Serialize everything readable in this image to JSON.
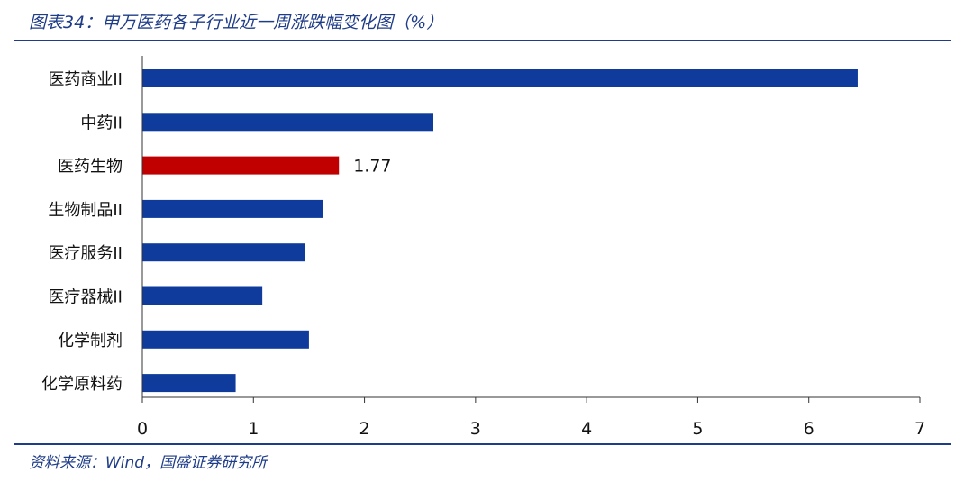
{
  "figure": {
    "title": "图表34：申万医药各子行业近一周涨跌幅变化图（%）",
    "source": "资料来源：Wind，国盛证券研究所"
  },
  "colors": {
    "bar": "#0f3c9c",
    "highlight": "#c00000",
    "text": "#111111",
    "axis": "#333333",
    "frame": "#1f3c88"
  },
  "chart_data": {
    "type": "bar",
    "orientation": "horizontal",
    "categories": [
      "医药商业II",
      "中药II",
      "医药生物",
      "生物制品II",
      "医疗服务II",
      "医疗器械II",
      "化学制剂",
      "化学原料药"
    ],
    "values": [
      6.44,
      2.62,
      1.77,
      1.63,
      1.46,
      1.08,
      1.5,
      0.84
    ],
    "highlight_category": "医药生物",
    "data_labels": [
      {
        "category": "医药生物",
        "text": "1.77"
      }
    ],
    "xlim": [
      0,
      7
    ],
    "xticks": [
      "0",
      "1",
      "2",
      "3",
      "4",
      "5",
      "6",
      "7"
    ],
    "grid": false,
    "legend": "none"
  }
}
